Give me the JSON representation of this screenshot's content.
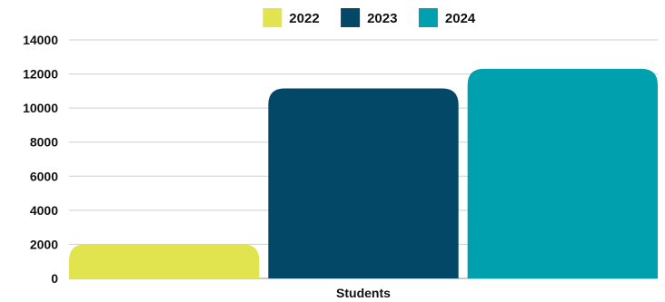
{
  "chart_data": {
    "type": "bar",
    "categories": [
      "Students"
    ],
    "series": [
      {
        "name": "2022",
        "values": [
          2000
        ],
        "color": "#e2e44f"
      },
      {
        "name": "2023",
        "values": [
          11150
        ],
        "color": "#034866"
      },
      {
        "name": "2024",
        "values": [
          12300
        ],
        "color": "#00a0af"
      }
    ],
    "title": "",
    "xlabel": "Students",
    "ylabel": "",
    "ylim": [
      0,
      14000
    ],
    "yticks": [
      "0",
      "2000",
      "4000",
      "6000",
      "8000",
      "10000",
      "12000",
      "14000"
    ],
    "grid": true,
    "legend_position": "top-center"
  }
}
